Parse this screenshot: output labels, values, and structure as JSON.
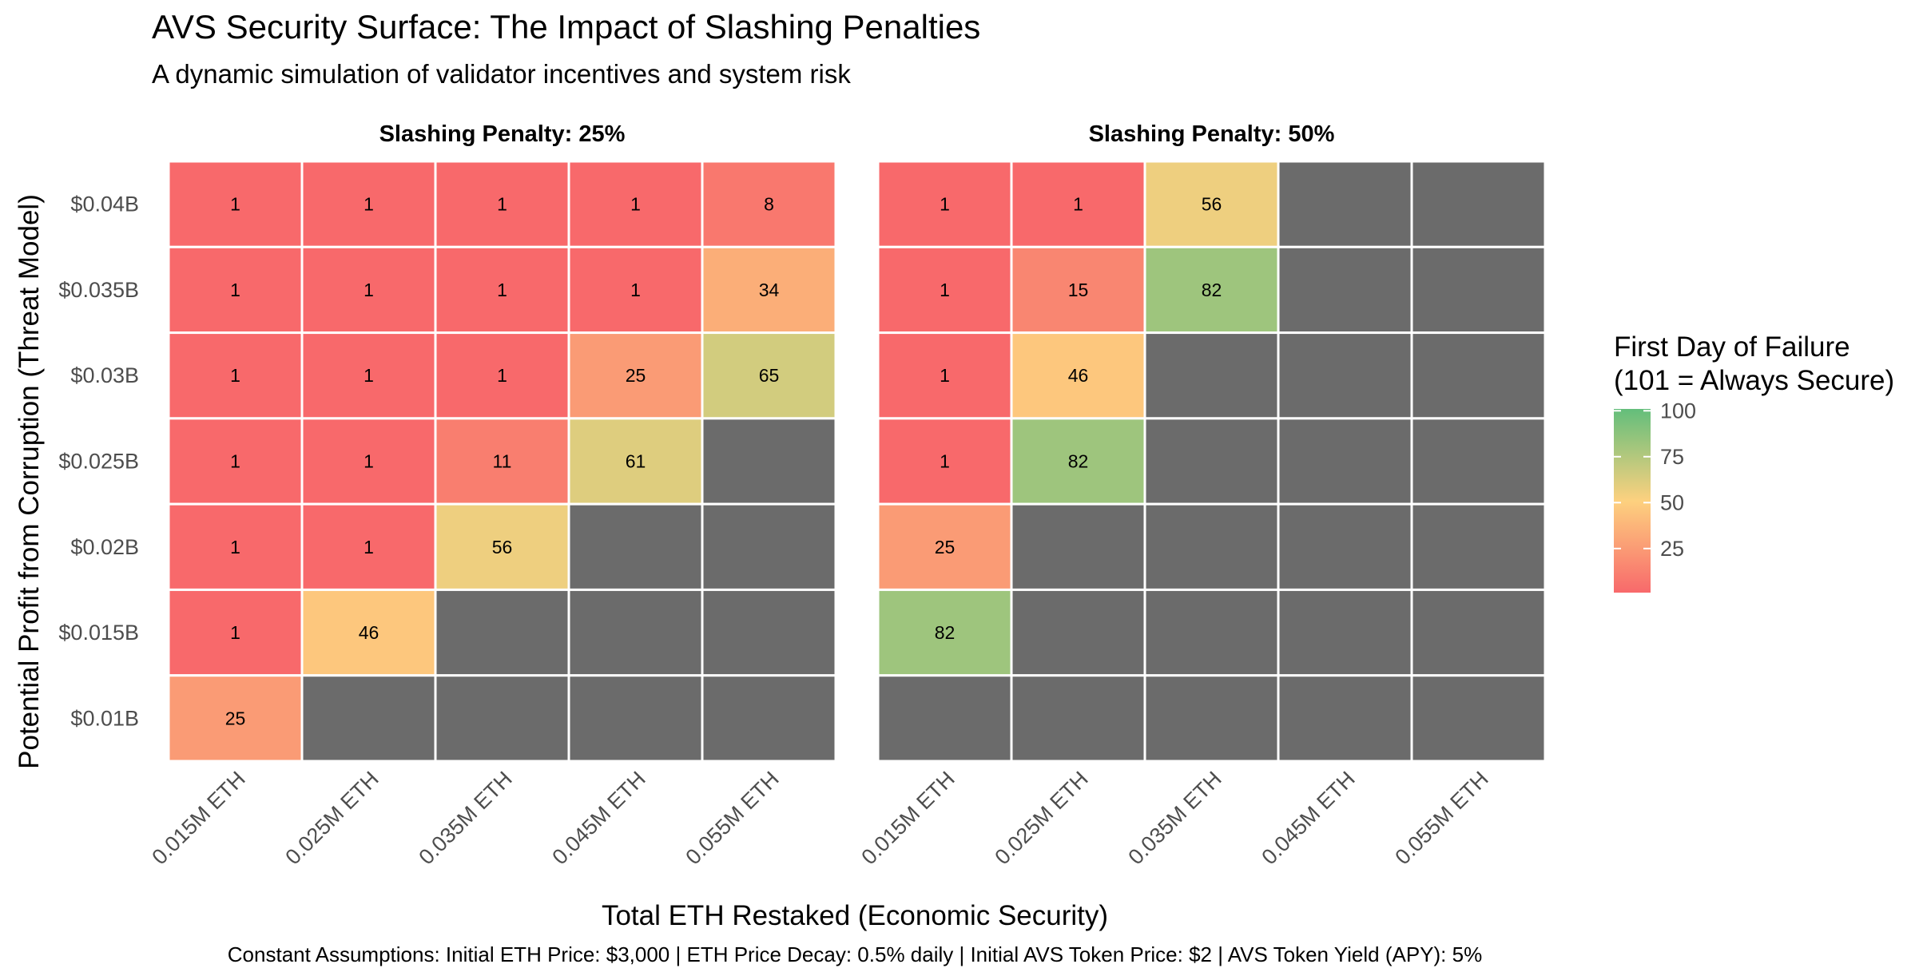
{
  "chart_data": {
    "type": "heatmap",
    "title": "AVS Security Surface: The Impact of Slashing Penalties",
    "subtitle": "A dynamic simulation of validator incentives and system risk",
    "xlabel": "Total ETH Restaked (Economic Security)",
    "ylabel": "Potential Profit from Corruption (Threat Model)",
    "caption": "Constant Assumptions: Initial ETH Price: $3,000 | ETH Price Decay: 0.5% daily | Initial AVS Token Price: $2 | AVS Token Yield (APY): 5%",
    "x_categories": [
      "0.015M ETH",
      "0.025M ETH",
      "0.035M ETH",
      "0.045M ETH",
      "0.055M ETH"
    ],
    "y_categories": [
      "$0.04B",
      "$0.035B",
      "$0.03B",
      "$0.025B",
      "$0.02B",
      "$0.015B",
      "$0.01B"
    ],
    "legend": {
      "title_line1": "First Day of Failure",
      "title_line2": "(101 = Always Secure)",
      "ticks": [
        100,
        75,
        50,
        25
      ],
      "range": [
        1,
        101
      ],
      "placement": "right"
    },
    "colors": {
      "low": "#F8696B",
      "mid": "#FDD17F",
      "high": "#63BE7B",
      "na": "#6B6B6B"
    },
    "panels": [
      {
        "name": "Slashing Penalty: 25%",
        "values": [
          [
            1,
            1,
            1,
            1,
            8
          ],
          [
            1,
            1,
            1,
            1,
            34
          ],
          [
            1,
            1,
            1,
            25,
            65
          ],
          [
            1,
            1,
            11,
            61,
            null
          ],
          [
            1,
            1,
            56,
            null,
            null
          ],
          [
            1,
            46,
            null,
            null,
            null
          ],
          [
            25,
            null,
            null,
            null,
            null
          ]
        ]
      },
      {
        "name": "Slashing Penalty: 50%",
        "values": [
          [
            1,
            1,
            56,
            null,
            null
          ],
          [
            1,
            15,
            82,
            null,
            null
          ],
          [
            1,
            46,
            null,
            null,
            null
          ],
          [
            1,
            82,
            null,
            null,
            null
          ],
          [
            25,
            null,
            null,
            null,
            null
          ],
          [
            82,
            null,
            null,
            null,
            null
          ],
          [
            null,
            null,
            null,
            null,
            null
          ]
        ]
      }
    ]
  }
}
